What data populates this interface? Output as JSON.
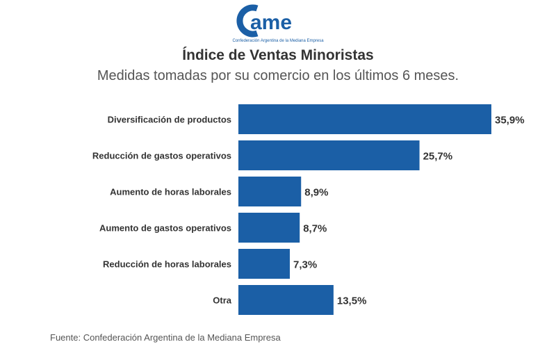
{
  "logo": {
    "brand_text": "came",
    "subtext": "Confederación Argentina de la Mediana Empresa"
  },
  "title": "Índice de Ventas Minoristas",
  "subtitle": "Medidas tomadas por su comercio en los últimos 6 meses.",
  "source": "Fuente: Confederación Argentina de la Mediana Empresa",
  "colors": {
    "bar": "#1b5fa6",
    "text": "#333333"
  },
  "chart_data": {
    "type": "bar",
    "orientation": "horizontal",
    "categories": [
      "Diversificación de productos",
      "Reducción de gastos operativos",
      "Aumento de horas laborales",
      "Aumento de gastos operativos",
      "Reducción de horas laborales",
      "Otra"
    ],
    "values": [
      35.9,
      25.7,
      8.9,
      8.7,
      7.3,
      13.5
    ],
    "data_labels": [
      "35,9%",
      "25,7%",
      "8,9%",
      "8,7%",
      "7,3%",
      "13,5%"
    ],
    "xlim": [
      0,
      35.9
    ],
    "grid": false,
    "legend": "none"
  }
}
